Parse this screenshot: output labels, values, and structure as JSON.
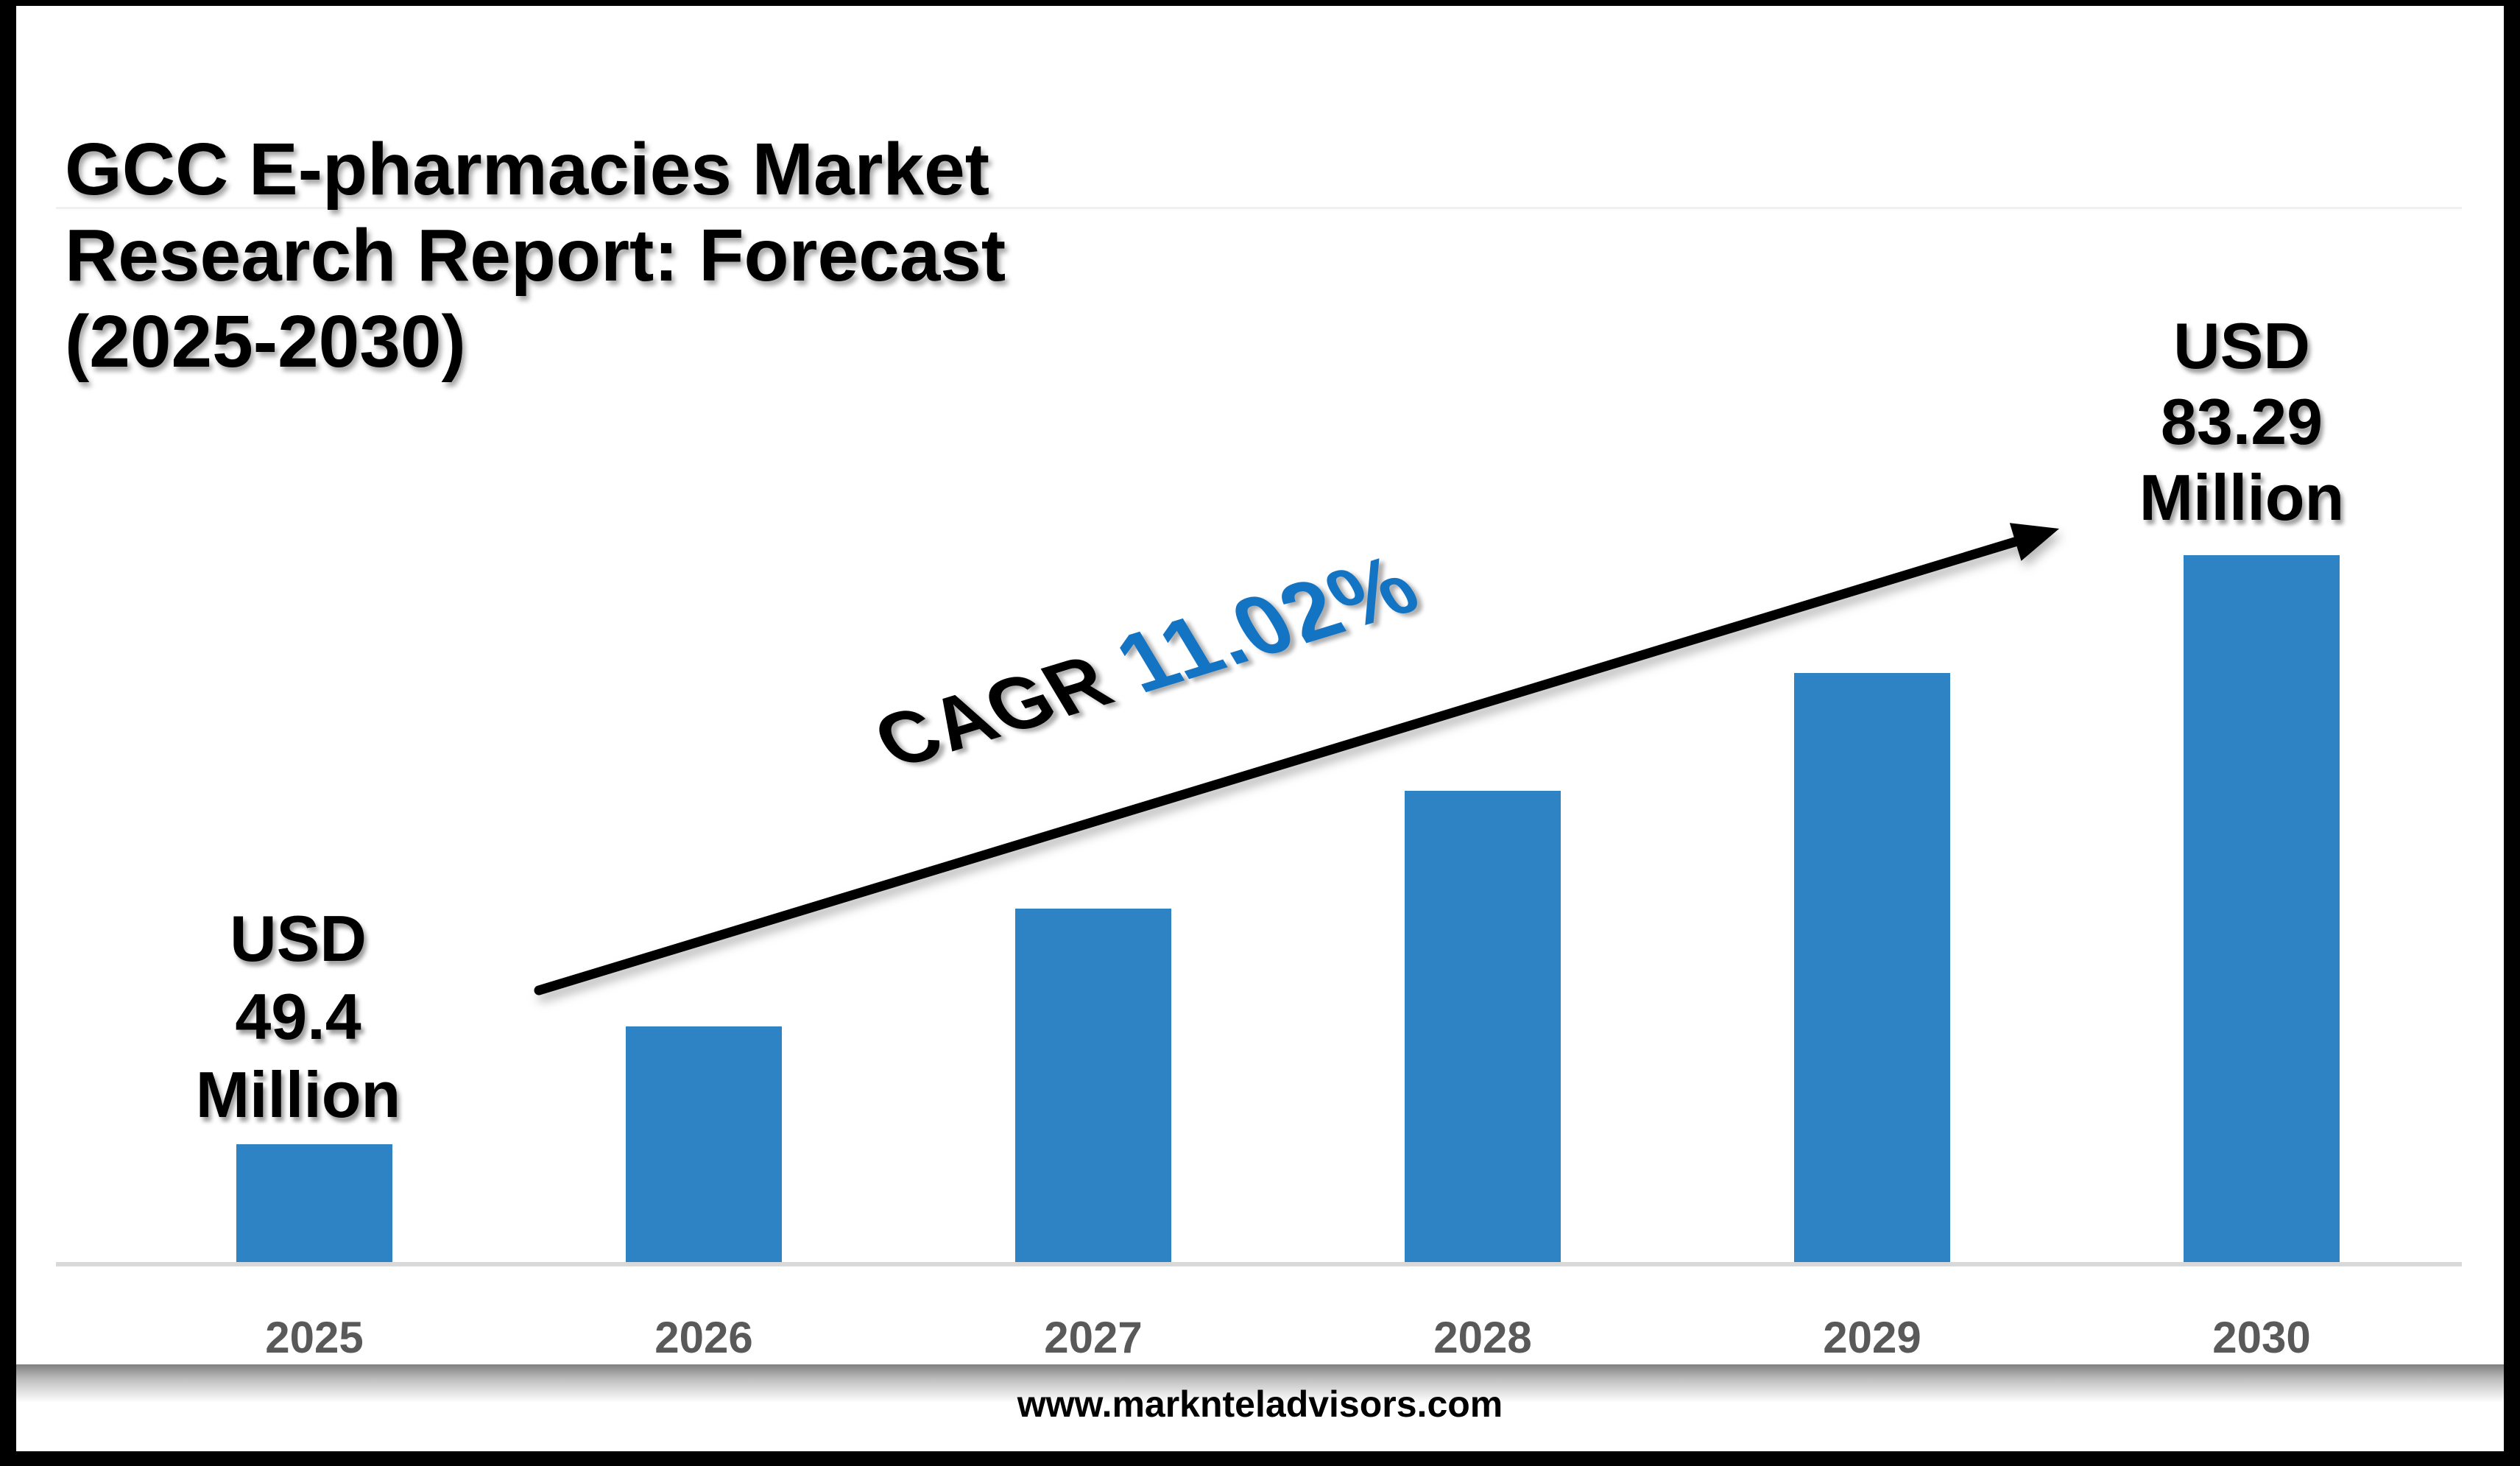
{
  "title": {
    "lines": [
      "GCC E-pharmacies Market",
      "Research Report: Forecast",
      "(2025-2030)"
    ]
  },
  "chart_data": {
    "type": "bar",
    "title": "GCC E-pharmacies Market Research Report: Forecast (2025-2030)",
    "categories": [
      "2025",
      "2026",
      "2027",
      "2028",
      "2029",
      "2030"
    ],
    "values": [
      49.4,
      54.84,
      60.89,
      67.6,
      75.04,
      83.29
    ],
    "unit": "USD Million",
    "labeled_points": {
      "2025": "USD 49.4 Million",
      "2030": "USD 83.29 Million"
    },
    "cagr": "11.02%",
    "xlabel": "",
    "ylabel": "",
    "grid": false,
    "legend": false,
    "bar_color": "#2E83C4",
    "tick_label_color": "#595959",
    "axis_line_color": "#D9D9D9"
  },
  "annotations": {
    "start_value_label": {
      "lines": [
        "USD",
        "49.4",
        "Million"
      ]
    },
    "end_value_label": {
      "lines": [
        "USD",
        "83.29",
        "Million"
      ]
    },
    "cagr": {
      "prefix": "CAGR",
      "value": "11.02%",
      "value_color": "#1474C4"
    }
  },
  "footer": {
    "website": "www.marknteladvisors.com"
  },
  "colors": {
    "frame": "#000000",
    "background": "#ffffff"
  }
}
